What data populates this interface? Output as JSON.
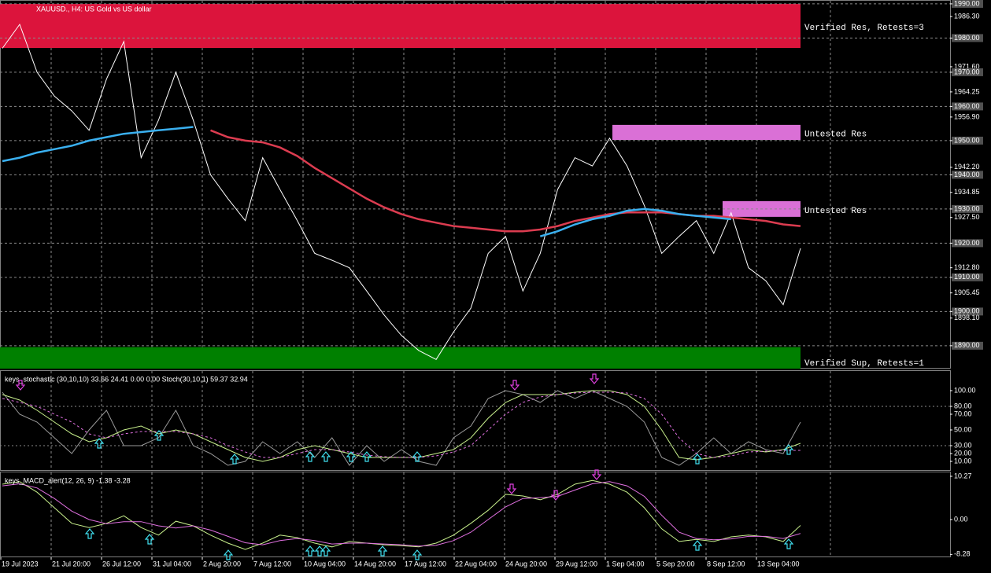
{
  "time_axis": [
    "19 Jul 2023",
    "21 Jul 20:00",
    "26 Jul 12:00",
    "31 Jul 04:00",
    "2 Aug 20:00",
    "7 Aug 12:00",
    "10 Aug 04:00",
    "14 Aug 20:00",
    "17 Aug 12:00",
    "22 Aug 04:00",
    "24 Aug 20:00",
    "29 Aug 12:00",
    "1 Sep 04:00",
    "5 Sep 20:00",
    "8 Sep 12:00",
    "13 Sep 04:00"
  ],
  "chart_data": [
    {
      "type": "line",
      "title": "XAUUSD., H4:  US Gold vs US dollar",
      "ylim": [
        1883.3,
        1990.9
      ],
      "yticks": [
        {
          "value": 1990,
          "label": "1990.00"
        },
        {
          "value": 1986.3,
          "label": "1986.30"
        },
        {
          "value": 1980,
          "label": "1980.00"
        },
        {
          "value": 1971.6,
          "label": "1971.60"
        },
        {
          "value": 1970,
          "label": "1970.00"
        },
        {
          "value": 1964.25,
          "label": "1964.25"
        },
        {
          "value": 1960,
          "label": "1960.00"
        },
        {
          "value": 1956.9,
          "label": "1956.90"
        },
        {
          "value": 1950,
          "label": "1950.00"
        },
        {
          "value": 1942.2,
          "label": "1942.20"
        },
        {
          "value": 1940,
          "label": "1940.00"
        },
        {
          "value": 1934.85,
          "label": "1934.85"
        },
        {
          "value": 1930,
          "label": "1930.00"
        },
        {
          "value": 1927.5,
          "label": "1927.50"
        },
        {
          "value": 1920,
          "label": "1920.00"
        },
        {
          "value": 1912.8,
          "label": "1912.80"
        },
        {
          "value": 1910,
          "label": "1910.00"
        },
        {
          "value": 1905.45,
          "label": "1905.45"
        },
        {
          "value": 1900,
          "label": "1900.00"
        },
        {
          "value": 1898.1,
          "label": "1898.10"
        },
        {
          "value": 1890,
          "label": "1890.00"
        }
      ],
      "zones": [
        {
          "label": "Verified Res, Retests=3",
          "low": 1977.1,
          "high": 1990,
          "color": "#dc143c"
        },
        {
          "label": "Untested Res",
          "low": 1950.2,
          "high": 1954.6,
          "color": "#da70d6"
        },
        {
          "label": "Untested Res",
          "low": 1927.7,
          "high": 1932.3,
          "color": "#da70d6"
        },
        {
          "label": "Verified Sup, Retests=1",
          "low": 1883.3,
          "high": 1889.6,
          "color": "#008000"
        }
      ],
      "series": [
        {
          "color": "#ffffff",
          "values": [
            1977,
            1984,
            1970,
            1963,
            1958.7,
            1953,
            1968,
            1979,
            1945,
            1956,
            1970,
            1956,
            1940,
            1933,
            1926.6,
            1945,
            1935.7,
            1926.6,
            1917,
            1915,
            1912.8,
            1906,
            1899,
            1893,
            1888.6,
            1886,
            1894,
            1901,
            1917,
            1922,
            1906,
            1917,
            1935.7,
            1945,
            1942.6,
            1950.7,
            1942.6,
            1931,
            1917,
            1922,
            1926.6,
            1917,
            1928.9,
            1912.8,
            1909,
            1902,
            1918.5
          ]
        },
        {
          "color": "#dc3c50",
          "values": [
            null,
            null,
            null,
            null,
            null,
            null,
            null,
            null,
            null,
            null,
            null,
            null,
            1953,
            1951,
            1950,
            1949.5,
            1948,
            1945.5,
            1942,
            1939,
            1936,
            1933,
            1930.5,
            1928.5,
            1927,
            1926,
            1925,
            1924.5,
            1924,
            1923.5,
            1923.5,
            1924,
            1925,
            1926.5,
            1927.5,
            1928.5,
            1929,
            1929,
            1929,
            1928.5,
            1928,
            1928,
            1927.5,
            1927,
            1926.5,
            1925.5,
            1925
          ]
        },
        {
          "color": "#3ab0f0",
          "values": [
            1944,
            1945,
            1946.5,
            1947.5,
            1948.5,
            1950,
            1951,
            1952,
            1952.5,
            1953,
            1953.5,
            1954,
            null,
            null,
            null,
            null,
            null,
            null,
            null,
            null,
            null,
            null,
            null,
            null,
            null,
            null,
            null,
            null,
            null,
            null,
            null,
            1922,
            1923.5,
            1925.5,
            1927,
            1928,
            1929.5,
            1930,
            1929.5,
            1928.5,
            1928,
            1927.5,
            1927,
            null,
            null,
            null,
            null
          ]
        }
      ]
    },
    {
      "type": "line",
      "title": "keys_stochastic (30,10,10) 33.66 24.41 0.00 0.00 Stoch(30,10,1) 59.37 32.94",
      "ylim": [
        -2,
        125
      ],
      "yticks": [
        {
          "value": 100,
          "label": "100.00"
        },
        {
          "value": 80,
          "label": "80.00"
        },
        {
          "value": 70,
          "label": "70.00"
        },
        {
          "value": 50,
          "label": "50.00"
        },
        {
          "value": 30,
          "label": "30.00"
        },
        {
          "value": 20,
          "label": "20.00"
        },
        {
          "value": 10,
          "label": "10.00"
        }
      ],
      "series": [
        {
          "color": "#9a9a9a",
          "values": [
            98,
            70,
            60,
            40,
            20,
            50,
            75,
            30,
            30,
            40,
            75,
            30,
            20,
            5,
            10,
            35,
            20,
            35,
            15,
            40,
            5,
            30,
            10,
            25,
            10,
            5,
            40,
            55,
            90,
            100,
            95,
            85,
            100,
            90,
            100,
            90,
            80,
            60,
            15,
            5,
            20,
            40,
            20,
            35,
            25,
            20,
            60
          ]
        },
        {
          "color": "#c8f08c",
          "values": [
            95,
            88,
            75,
            60,
            45,
            35,
            40,
            50,
            55,
            45,
            50,
            45,
            35,
            25,
            15,
            10,
            15,
            25,
            30,
            25,
            20,
            15,
            15,
            15,
            15,
            20,
            25,
            40,
            65,
            85,
            95,
            95,
            95,
            98,
            100,
            100,
            95,
            80,
            50,
            15,
            12,
            15,
            20,
            25,
            22,
            25,
            33
          ]
        },
        {
          "color": "#e070e0",
          "dash": true,
          "values": [
            90,
            85,
            80,
            70,
            60,
            45,
            40,
            45,
            48,
            48,
            48,
            45,
            40,
            30,
            22,
            15,
            15,
            20,
            25,
            25,
            22,
            18,
            16,
            15,
            15,
            17,
            22,
            30,
            50,
            70,
            85,
            92,
            95,
            97,
            98,
            98,
            97,
            90,
            70,
            40,
            20,
            15,
            17,
            22,
            23,
            24,
            24
          ]
        }
      ]
    },
    {
      "type": "line",
      "title": "keys_MACD_alert(12, 26, 9) -1.38 -3.28",
      "ylim": [
        -8.96,
        11.2
      ],
      "yticks": [
        {
          "value": 10.27,
          "label": "10.27"
        },
        {
          "value": 0,
          "label": "0.00"
        },
        {
          "value": -8.28,
          "label": "-8.28"
        }
      ],
      "series": [
        {
          "color": "#c8f08c",
          "values": [
            8.4,
            9,
            6.5,
            2.8,
            -0.9,
            -1.9,
            -0.9,
            0.9,
            -1.9,
            -3.7,
            -0.4,
            -1.5,
            -3.7,
            -5.6,
            -7.1,
            -5.6,
            -3.7,
            -4.3,
            -5.6,
            -6.5,
            -5.2,
            -5.6,
            -6,
            -6.2,
            -6.5,
            -5.6,
            -3.7,
            -0.9,
            2.2,
            6,
            5.6,
            4.7,
            6,
            8.4,
            9.3,
            8.4,
            6.5,
            2.8,
            -2.2,
            -5.2,
            -4.7,
            -5.2,
            -4.1,
            -3.7,
            -4.1,
            -5.2,
            -1.4
          ]
        },
        {
          "color": "#e070e0",
          "values": [
            8,
            8.5,
            7.5,
            5,
            2,
            0,
            -1,
            -0.5,
            -0.5,
            -1.5,
            -2,
            -1.5,
            -2.5,
            -4,
            -5.5,
            -6,
            -5,
            -4.5,
            -5,
            -5.8,
            -5.6,
            -5.6,
            -5.8,
            -6,
            -6.3,
            -6.1,
            -5,
            -3,
            0,
            3,
            5,
            5.2,
            5.5,
            7,
            8.5,
            9,
            8,
            5.5,
            1,
            -3,
            -4.5,
            -4.8,
            -4.6,
            -4,
            -4,
            -4.5,
            -3.3
          ]
        }
      ]
    }
  ]
}
